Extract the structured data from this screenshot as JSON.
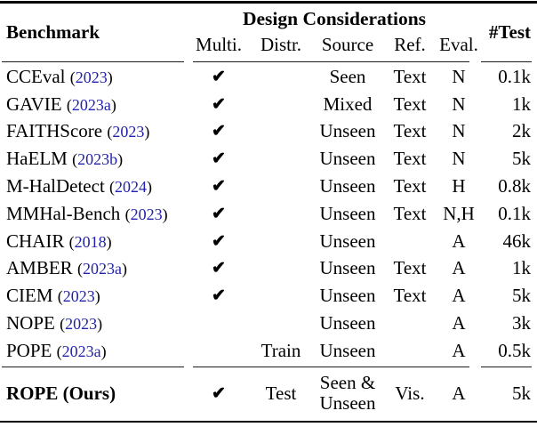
{
  "table": {
    "header": {
      "benchmark": "Benchmark",
      "group": "Design Considerations",
      "subcols": [
        "Multi.",
        "Distr.",
        "Source",
        "Ref.",
        "Eval."
      ],
      "test": "#Test"
    },
    "cite_format": {
      "open": "(",
      "close": ")"
    },
    "rows": [
      {
        "name": "CCEval",
        "year": "2023",
        "multi": true,
        "distr": "",
        "source": "Seen",
        "ref": "Text",
        "eval": "N",
        "test": "0.1k"
      },
      {
        "name": "GAVIE",
        "year": "2023a",
        "multi": true,
        "distr": "",
        "source": "Mixed",
        "ref": "Text",
        "eval": "N",
        "test": "1k"
      },
      {
        "name": "FAITHScore",
        "year": "2023",
        "multi": true,
        "distr": "",
        "source": "Unseen",
        "ref": "Text",
        "eval": "N",
        "test": "2k"
      },
      {
        "name": "HaELM",
        "year": "2023b",
        "multi": true,
        "distr": "",
        "source": "Unseen",
        "ref": "Text",
        "eval": "N",
        "test": "5k"
      },
      {
        "name": "M-HalDetect",
        "year": "2024",
        "multi": true,
        "distr": "",
        "source": "Unseen",
        "ref": "Text",
        "eval": "H",
        "test": "0.8k"
      },
      {
        "name": "MMHal-Bench",
        "year": "2023",
        "multi": true,
        "distr": "",
        "source": "Unseen",
        "ref": "Text",
        "eval": "N,H",
        "test": "0.1k"
      },
      {
        "name": "CHAIR",
        "year": "2018",
        "multi": true,
        "distr": "",
        "source": "Unseen",
        "ref": "",
        "eval": "A",
        "test": "46k"
      },
      {
        "name": "AMBER",
        "year": "2023a",
        "multi": true,
        "distr": "",
        "source": "Unseen",
        "ref": "Text",
        "eval": "A",
        "test": "1k"
      },
      {
        "name": "CIEM",
        "year": "2023",
        "multi": true,
        "distr": "",
        "source": "Unseen",
        "ref": "Text",
        "eval": "A",
        "test": "5k"
      },
      {
        "name": "NOPE",
        "year": "2023",
        "multi": false,
        "distr": "",
        "source": "Unseen",
        "ref": "",
        "eval": "A",
        "test": "3k"
      },
      {
        "name": "POPE",
        "year": "2023a",
        "multi": false,
        "distr": "Train",
        "source": "Unseen",
        "ref": "",
        "eval": "A",
        "test": "0.5k"
      }
    ],
    "ours_row": {
      "name": "ROPE (Ours)",
      "year": "",
      "bold": true,
      "multi": true,
      "distr": "Test",
      "source": [
        "Seen &",
        "Unseen"
      ],
      "ref": "Vis.",
      "eval": "A",
      "test": "5k"
    }
  },
  "icons": {
    "check": "✔"
  },
  "colors": {
    "citation_blue": "#2222aa",
    "rule_black": "#000000",
    "divider_gray": "#1c1c1c"
  }
}
